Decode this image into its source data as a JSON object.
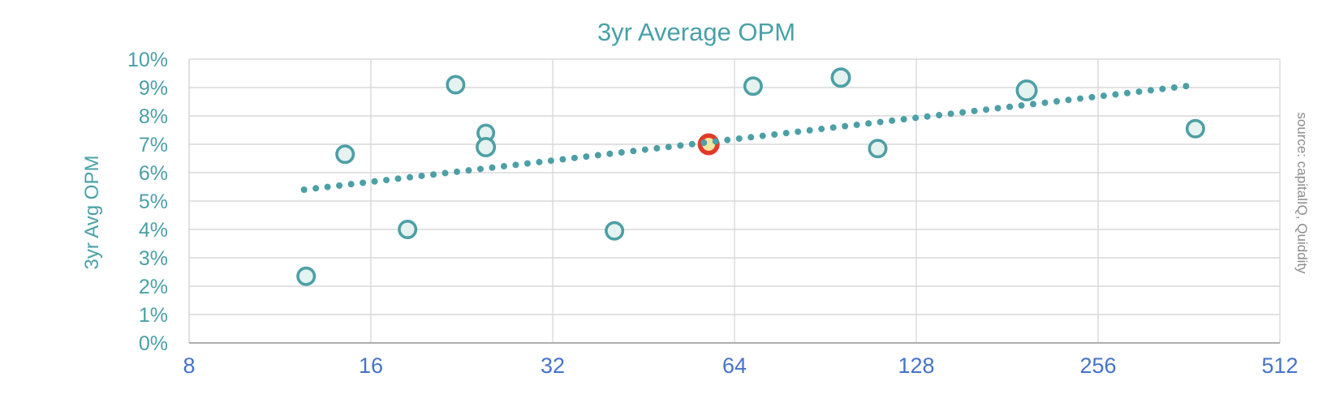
{
  "chart": {
    "title": "3yr Average OPM",
    "y_axis_title": "3yr Avg OPM",
    "source_note": "source: capitalIQ, Quiddity"
  },
  "chart_data": {
    "type": "scatter",
    "title": "3yr Average OPM",
    "xlabel": "",
    "ylabel": "3yr Avg OPM",
    "x_scale": "log2",
    "xlim": [
      8,
      512
    ],
    "ylim_pct": [
      0,
      10
    ],
    "grid": true,
    "legend": "none",
    "x_ticks": [
      8,
      16,
      32,
      64,
      128,
      256,
      512
    ],
    "x_tick_labels": [
      "8",
      "16",
      "32",
      "64",
      "128",
      "256",
      "512"
    ],
    "y_ticks_pct": [
      0,
      1,
      2,
      3,
      4,
      5,
      6,
      7,
      8,
      9,
      10
    ],
    "y_tick_labels": [
      "0%",
      "1%",
      "2%",
      "3%",
      "4%",
      "5%",
      "6%",
      "7%",
      "8%",
      "9%",
      "10%"
    ],
    "points": [
      {
        "x": 12.5,
        "y_pct": 2.35,
        "r": 12,
        "highlighted": false
      },
      {
        "x": 14.5,
        "y_pct": 6.65,
        "r": 12,
        "highlighted": false
      },
      {
        "x": 18.4,
        "y_pct": 4.0,
        "r": 12,
        "highlighted": false
      },
      {
        "x": 22.1,
        "y_pct": 9.1,
        "r": 12,
        "highlighted": false
      },
      {
        "x": 24.8,
        "y_pct": 7.4,
        "r": 11.5,
        "highlighted": false
      },
      {
        "x": 24.8,
        "y_pct": 6.9,
        "r": 12.5,
        "highlighted": false
      },
      {
        "x": 40.5,
        "y_pct": 3.95,
        "r": 12,
        "highlighted": false
      },
      {
        "x": 58,
        "y_pct": 7.0,
        "r": 13.5,
        "highlighted": true
      },
      {
        "x": 68.7,
        "y_pct": 9.05,
        "r": 12,
        "highlighted": false
      },
      {
        "x": 96,
        "y_pct": 9.35,
        "r": 12.5,
        "highlighted": false
      },
      {
        "x": 110.5,
        "y_pct": 6.85,
        "r": 12,
        "highlighted": false
      },
      {
        "x": 195,
        "y_pct": 8.9,
        "r": 13.5,
        "highlighted": false
      },
      {
        "x": 371,
        "y_pct": 7.55,
        "r": 12,
        "highlighted": false
      }
    ],
    "trendline": {
      "style": "dotted",
      "x_start": 12.4,
      "y_start_pct": 5.4,
      "x_end": 358,
      "y_end_pct": 9.05,
      "dot_count": 76
    },
    "colors": {
      "teal_stroke": "#4D9FA6",
      "point_fill": "#E4F2F0",
      "trend_dot": "#4D9FA6",
      "highlight_ring": "#E23A29",
      "highlight_center": "#F3E5A4",
      "x_tick_text": "#4573C7",
      "y_tick_text": "#4AA0A7",
      "title_text": "#4AA0A7",
      "source_text": "#8C8C8C",
      "gridline": "#D8D8D8",
      "axis_line": "#AFAFAF"
    }
  }
}
